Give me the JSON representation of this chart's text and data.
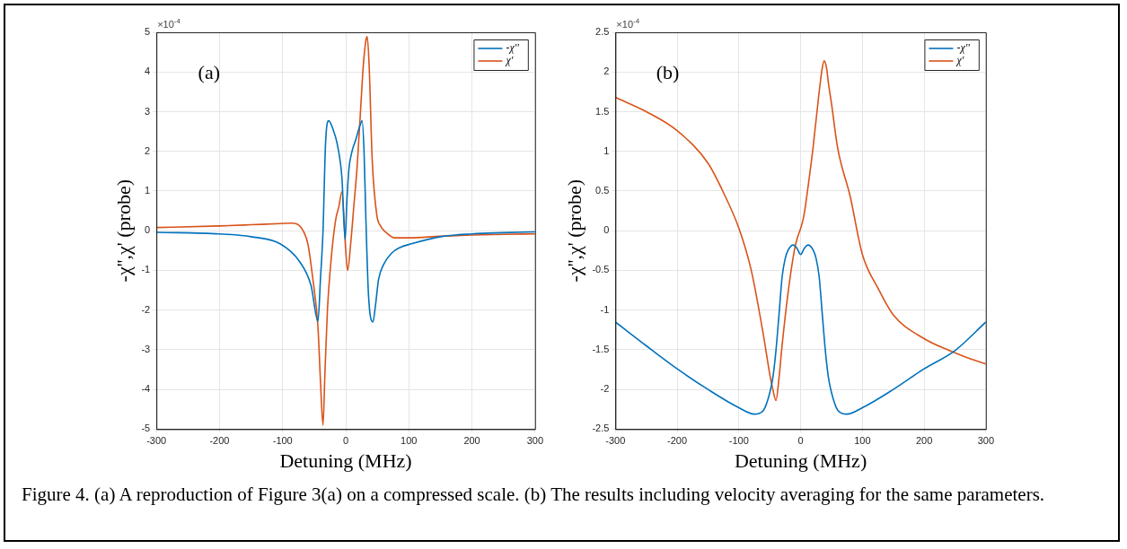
{
  "chart_data": [
    {
      "type": "line",
      "xlabel": "Detuning (MHz)",
      "ylabel": "-χ'',χ' (probe)",
      "annotations": [
        "(a)",
        "×10$^{-4}$"
      ],
      "xlim": [
        -300,
        300
      ],
      "xticks": [
        -300,
        -200,
        -100,
        0,
        100,
        200,
        300
      ],
      "ylim": [
        -5,
        5
      ],
      "yticks": [
        -5,
        -4,
        -3,
        -2,
        -1,
        0,
        1,
        2,
        3,
        4,
        5
      ],
      "grid": true,
      "legend": "top right",
      "marker": "none",
      "line_style": "solid",
      "series": [
        {
          "name": "-χ''",
          "color": "#0072bd",
          "x": [
            -300,
            -200,
            -150,
            -104,
            -73,
            -55,
            -44,
            -40,
            -36,
            -32,
            -27,
            -20,
            -13,
            -6,
            -1,
            2,
            5,
            10,
            16,
            23,
            26,
            29,
            32,
            36,
            43,
            47,
            52,
            60,
            73,
            85,
            104,
            150,
            200,
            250,
            300
          ],
          "values": [
            -0.04,
            -0.08,
            -0.15,
            -0.33,
            -0.78,
            -1.38,
            -2.28,
            -1.2,
            0.0,
            2.2,
            2.77,
            2.55,
            2.15,
            1.32,
            -0.22,
            0.8,
            1.55,
            2.0,
            2.3,
            2.67,
            2.77,
            2.0,
            0.27,
            -1.6,
            -2.3,
            -1.9,
            -1.23,
            -0.85,
            -0.56,
            -0.43,
            -0.33,
            -0.15,
            -0.08,
            -0.05,
            -0.03
          ]
        },
        {
          "name": "χ'",
          "color": "#d95319",
          "x": [
            -300,
            -200,
            -150,
            -104,
            -85,
            -73,
            -66,
            -60,
            -52,
            -44,
            -40,
            -36,
            -33,
            -29,
            -23,
            -16,
            -11,
            -6,
            0,
            3,
            8,
            13,
            18,
            23,
            28,
            32,
            34,
            37,
            42,
            49,
            56,
            63,
            78,
            100,
            150,
            200,
            250,
            300
          ],
          "values": [
            0.08,
            0.12,
            0.15,
            0.18,
            0.19,
            0.12,
            -0.05,
            -0.33,
            -1.23,
            -2.43,
            -3.8,
            -4.9,
            -3.6,
            -2.0,
            -0.7,
            0.27,
            0.6,
            0.98,
            -0.5,
            -1.0,
            -0.3,
            0.65,
            1.6,
            2.9,
            4.2,
            4.8,
            4.89,
            4.2,
            1.77,
            0.42,
            0.1,
            -0.03,
            -0.18,
            -0.18,
            -0.14,
            -0.11,
            -0.09,
            -0.08
          ]
        }
      ]
    },
    {
      "type": "line",
      "xlabel": "Detuning (MHz)",
      "ylabel": "-χ'',χ' (probe)",
      "annotations": [
        "(b)",
        "×10$^{-4}$",
        "Figure 4. (a) A reproduction of Figure 3(a) on a compressed scale. (b) The results including velocity averaging for the same parameters."
      ],
      "xlim": [
        -300,
        300
      ],
      "xticks": [
        -300,
        -200,
        -100,
        0,
        100,
        200,
        300
      ],
      "ylim": [
        -2.5,
        2.5
      ],
      "yticks": [
        -2.5,
        -2,
        -1.5,
        -1,
        -0.5,
        0,
        0.5,
        1,
        1.5,
        2,
        2.5
      ],
      "grid": true,
      "legend": "top right",
      "marker": "none",
      "line_style": "solid",
      "series": [
        {
          "name": "-χ''",
          "color": "#0072bd",
          "x": [
            -300,
            -250,
            -200,
            -150,
            -100,
            -75,
            -60,
            -50,
            -45,
            -40,
            -35,
            -30,
            -25,
            -20,
            -12,
            -6,
            0,
            6,
            12,
            20,
            25,
            30,
            35,
            40,
            45,
            50,
            60,
            75,
            100,
            150,
            200,
            250,
            300
          ],
          "values": [
            -1.15,
            -1.45,
            -1.74,
            -2.0,
            -2.23,
            -2.31,
            -2.26,
            -2.04,
            -1.85,
            -1.51,
            -1.05,
            -0.58,
            -0.35,
            -0.24,
            -0.18,
            -0.22,
            -0.3,
            -0.22,
            -0.18,
            -0.24,
            -0.35,
            -0.58,
            -1.05,
            -1.51,
            -1.85,
            -2.04,
            -2.26,
            -2.31,
            -2.23,
            -2.0,
            -1.74,
            -1.51,
            -1.15
          ]
        },
        {
          "name": "χ'",
          "color": "#d95319",
          "x": [
            -300,
            -250,
            -200,
            -150,
            -125,
            -100,
            -80,
            -60,
            -50,
            -45,
            -40,
            -35,
            -30,
            -20,
            -10,
            -5,
            0,
            5,
            10,
            20,
            30,
            35,
            38,
            42,
            45,
            50,
            60,
            80,
            100,
            125,
            150,
            200,
            241,
            270,
            300
          ],
          "values": [
            1.68,
            1.5,
            1.26,
            0.85,
            0.48,
            0.03,
            -0.5,
            -1.33,
            -1.81,
            -2.0,
            -2.14,
            -1.85,
            -1.44,
            -0.76,
            -0.24,
            -0.08,
            0.03,
            0.18,
            0.44,
            1.04,
            1.75,
            2.05,
            2.14,
            2.05,
            1.86,
            1.6,
            1.04,
            0.44,
            -0.3,
            -0.72,
            -1.06,
            -1.36,
            -1.51,
            -1.6,
            -1.68
          ]
        }
      ]
    }
  ]
}
